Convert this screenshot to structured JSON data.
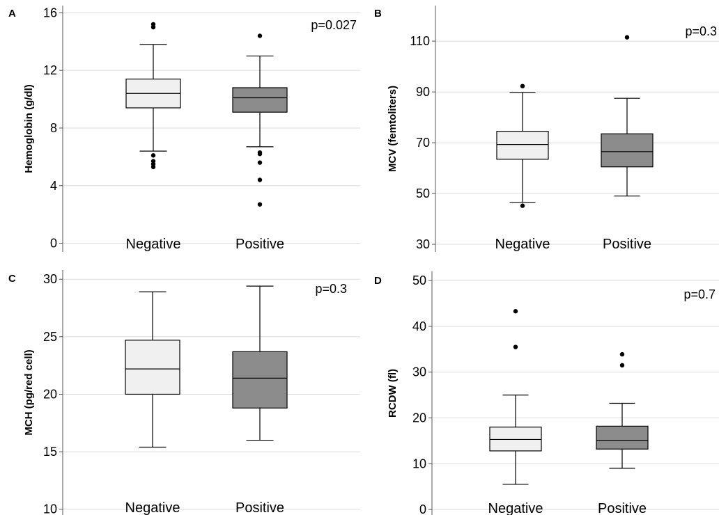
{
  "colors": {
    "negative_fill": "#f0f0f0",
    "positive_fill": "#8c8c8c",
    "stroke": "#000000",
    "grid": "#dcdcdc",
    "axis": "#555555"
  },
  "chart_data": [
    {
      "panel": "A",
      "type": "box",
      "ylabel": "Hemoglobin (g/dl)",
      "annotation": "p=0.027",
      "ylim": [
        -0.6,
        16.5
      ],
      "yticks": [
        0,
        4,
        8,
        12,
        16
      ],
      "categories": [
        "Negative",
        "Positive"
      ],
      "boxes": [
        {
          "category": "Negative",
          "whisker_low": 6.4,
          "q1": 9.4,
          "median": 10.4,
          "q3": 11.4,
          "whisker_high": 13.8,
          "outliers": [
            15.2,
            15.0,
            6.1,
            5.7,
            5.5,
            5.3
          ]
        },
        {
          "category": "Positive",
          "whisker_low": 6.7,
          "q1": 9.1,
          "median": 10.1,
          "q3": 10.8,
          "whisker_high": 13.0,
          "outliers": [
            14.4,
            6.3,
            6.2,
            5.6,
            4.4,
            2.7
          ]
        }
      ],
      "grid": true
    },
    {
      "panel": "B",
      "type": "box",
      "ylabel": "MCV (femtoliters)",
      "annotation": "p=0.3",
      "ylim": [
        27,
        124
      ],
      "yticks": [
        30,
        50,
        70,
        90,
        110
      ],
      "categories": [
        "Negative",
        "Positive"
      ],
      "boxes": [
        {
          "category": "Negative",
          "whisker_low": 46.5,
          "q1": 63.5,
          "median": 69.3,
          "q3": 74.5,
          "whisker_high": 89.8,
          "outliers": [
            92.3,
            45.2
          ]
        },
        {
          "category": "Positive",
          "whisker_low": 49.0,
          "q1": 60.5,
          "median": 66.5,
          "q3": 73.5,
          "whisker_high": 87.5,
          "outliers": [
            111.5
          ]
        }
      ],
      "grid": true
    },
    {
      "panel": "C",
      "type": "box",
      "ylabel": "MCH (pg/red cell)",
      "annotation": "p=0.3",
      "ylim": [
        9.5,
        30.8
      ],
      "yticks": [
        10,
        15,
        20,
        25,
        30
      ],
      "categories": [
        "Negative",
        "Positive"
      ],
      "boxes": [
        {
          "category": "Negative",
          "whisker_low": 15.4,
          "q1": 20.0,
          "median": 22.2,
          "q3": 24.7,
          "whisker_high": 28.9,
          "outliers": []
        },
        {
          "category": "Positive",
          "whisker_low": 16.0,
          "q1": 18.8,
          "median": 21.4,
          "q3": 23.7,
          "whisker_high": 29.4,
          "outliers": []
        }
      ],
      "grid": true
    },
    {
      "panel": "D",
      "type": "box",
      "ylabel": "RCDW (fl)",
      "annotation": "p=0.7",
      "ylim": [
        -1.2,
        52
      ],
      "yticks": [
        0,
        10,
        20,
        30,
        40,
        50
      ],
      "categories": [
        "Negative",
        "Positive"
      ],
      "boxes": [
        {
          "category": "Negative",
          "whisker_low": 5.5,
          "q1": 12.8,
          "median": 15.3,
          "q3": 18.0,
          "whisker_high": 25.0,
          "outliers": [
            43.3,
            35.5
          ]
        },
        {
          "category": "Positive",
          "whisker_low": 9.0,
          "q1": 13.2,
          "median": 15.1,
          "q3": 18.2,
          "whisker_high": 23.2,
          "outliers": [
            33.9,
            31.5
          ]
        }
      ],
      "grid": true
    }
  ]
}
